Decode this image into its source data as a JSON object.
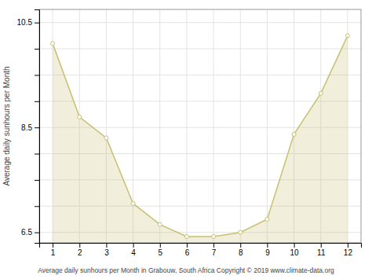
{
  "chart_data": {
    "type": "area",
    "xlabel": "Average daily sunhours per Month in Grabouw, South Africa Copyright © 2019 www.climate-data.org",
    "ylabel": "Average daily sunhours per Month",
    "x": [
      1,
      2,
      3,
      4,
      5,
      6,
      7,
      8,
      9,
      10,
      11,
      12
    ],
    "values": [
      10.1,
      8.7,
      8.3,
      7.05,
      6.65,
      6.42,
      6.42,
      6.5,
      6.75,
      8.37,
      9.15,
      10.25
    ],
    "color": "#C8C070",
    "marker": "circle",
    "xlim": [
      0.5,
      12.5
    ],
    "xticks": [
      1,
      2,
      3,
      4,
      5,
      6,
      7,
      8,
      9,
      10,
      11,
      12
    ],
    "ylim": [
      6.3,
      10.75
    ],
    "yticks": [
      6.5,
      {
        "value": 7.0,
        "label": null
      },
      {
        "value": 7.5,
        "label": null
      },
      {
        "value": 8.0,
        "label": null
      },
      8.5,
      {
        "value": 9.0,
        "label": null
      },
      {
        "value": 9.5,
        "label": null
      },
      {
        "value": 10.0,
        "label": null
      },
      10.5
    ],
    "grid": true
  }
}
